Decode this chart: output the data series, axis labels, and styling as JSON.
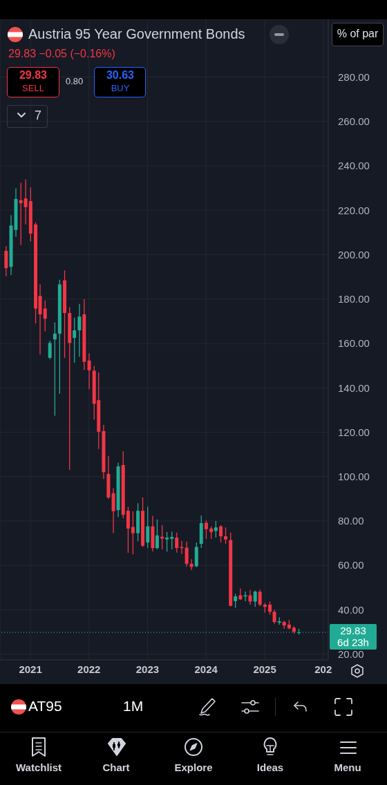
{
  "chart_data": {
    "type": "candlestick",
    "title": "Austria 95 Year Government Bonds",
    "subtitle": "29.83 −0.05 (−0.16%)",
    "x": [
      "2020-08",
      "2020-09",
      "2020-10",
      "2020-11",
      "2020-12",
      "2021-01",
      "2021-02",
      "2021-03",
      "2021-04",
      "2021-05",
      "2021-06",
      "2021-07",
      "2021-08",
      "2021-09",
      "2021-10",
      "2021-11",
      "2021-12",
      "2022-01",
      "2022-02",
      "2022-03",
      "2022-04",
      "2022-05",
      "2022-06",
      "2022-07",
      "2022-08",
      "2022-09",
      "2022-10",
      "2022-11",
      "2022-12",
      "2023-01",
      "2023-02",
      "2023-03",
      "2023-04",
      "2023-05",
      "2023-06",
      "2023-07",
      "2023-08",
      "2023-09",
      "2023-10",
      "2023-11",
      "2023-12",
      "2024-01",
      "2024-02",
      "2024-03",
      "2024-04",
      "2024-05",
      "2024-06",
      "2024-07",
      "2024-08",
      "2024-09",
      "2024-10",
      "2024-11",
      "2024-12",
      "2025-01",
      "2025-02",
      "2025-03",
      "2025-04",
      "2025-05",
      "2025-06",
      "2025-07",
      "2025-08"
    ],
    "ohlc": [
      [
        201.7,
        203.8,
        190.3,
        193.9
      ],
      [
        194.5,
        217.8,
        190.8,
        213.1
      ],
      [
        211.1,
        229.9,
        208,
        225.1
      ],
      [
        224.5,
        232.3,
        204.3,
        223.2
      ],
      [
        225.3,
        233.9,
        213.6,
        221.4
      ],
      [
        224.1,
        230.3,
        205.9,
        209.5
      ],
      [
        213.6,
        214.5,
        169,
        175.7
      ],
      [
        181.4,
        186.6,
        155,
        173.1
      ],
      [
        175.7,
        179.4,
        165.4,
        171.1
      ],
      [
        153.5,
        161.2,
        152.9,
        160.2
      ],
      [
        161.8,
        169.5,
        127.4,
        164.4
      ],
      [
        164.4,
        188.7,
        137.3,
        186.6
      ],
      [
        188.4,
        192.9,
        153.5,
        173.7
      ],
      [
        173.7,
        176.3,
        103,
        160.2
      ],
      [
        162.5,
        171.6,
        151.3,
        165.9
      ],
      [
        165.9,
        177.8,
        154,
        172.1
      ],
      [
        173.1,
        179.9,
        148,
        151.7
      ],
      [
        152.3,
        155.5,
        139.4,
        147.9
      ],
      [
        147.7,
        149.8,
        125.7,
        132.8
      ],
      [
        134.4,
        146.9,
        112.4,
        120.2
      ],
      [
        120.5,
        123.3,
        98.9,
        102
      ],
      [
        101.2,
        109.3,
        90,
        90.6
      ],
      [
        92.5,
        94.8,
        74.5,
        84.4
      ],
      [
        84.9,
        106.2,
        81.8,
        104.6
      ],
      [
        105.2,
        111.4,
        81.2,
        82.8
      ],
      [
        84.6,
        86.4,
        65.7,
        76.6
      ],
      [
        77.3,
        84.4,
        65,
        74.5
      ],
      [
        74.5,
        88,
        70.9,
        84.6
      ],
      [
        84.6,
        90.6,
        68.3,
        68.8
      ],
      [
        70.3,
        86.4,
        67.8,
        77.6
      ],
      [
        77.6,
        82.3,
        66.3,
        67.8
      ],
      [
        67.8,
        80.7,
        67.2,
        73.5
      ],
      [
        72.9,
        78.1,
        67.2,
        72.1
      ],
      [
        71.7,
        75,
        66.2,
        72.5
      ],
      [
        72,
        75.2,
        67.2,
        72.8
      ],
      [
        72.5,
        74.8,
        65.7,
        67.8
      ],
      [
        68.3,
        71.1,
        65.2,
        67.8
      ],
      [
        68,
        70.7,
        59.4,
        60.7
      ],
      [
        60.7,
        62.8,
        57.9,
        59.3
      ],
      [
        59.6,
        70.3,
        59.2,
        68.3
      ],
      [
        69.7,
        82.5,
        67.8,
        79
      ],
      [
        79.2,
        80.2,
        71.9,
        76.3
      ],
      [
        76.6,
        77.6,
        71.9,
        75
      ],
      [
        75.5,
        80,
        72.5,
        77.1
      ],
      [
        77.6,
        78.1,
        70.3,
        73.1
      ],
      [
        73.1,
        77.1,
        69.7,
        71.7
      ],
      [
        71.4,
        74.8,
        41.5,
        41.8
      ],
      [
        43.9,
        47.2,
        40.8,
        46
      ],
      [
        46.5,
        49.6,
        44.4,
        44.7
      ],
      [
        46,
        48.2,
        43.9,
        46.5
      ],
      [
        46.5,
        48.9,
        42.3,
        43.7
      ],
      [
        43.7,
        48.6,
        41.3,
        48.2
      ],
      [
        48.1,
        49.1,
        41.6,
        42.3
      ],
      [
        42.3,
        43,
        38.7,
        41.3
      ],
      [
        42.3,
        43.7,
        37.8,
        39.1
      ],
      [
        39.1,
        40,
        33.7,
        34.5
      ],
      [
        34.2,
        36.6,
        33.3,
        34.8
      ],
      [
        34.5,
        35,
        31.4,
        32.9
      ],
      [
        33.3,
        35.4,
        31.3,
        31.6
      ],
      [
        31.9,
        32.6,
        29.3,
        30.1
      ],
      [
        29.7,
        31.4,
        28.8,
        29.83
      ]
    ],
    "colors": [
      "#f23645",
      "#22ab94",
      "#22ab94",
      "#f23645",
      "#f23645",
      "#f23645",
      "#f23645",
      "#f23645",
      "#f23645",
      "#22ab94",
      "#22ab94",
      "#22ab94",
      "#f23645",
      "#f23645",
      "#22ab94",
      "#22ab94",
      "#f23645",
      "#f23645",
      "#f23645",
      "#f23645",
      "#f23645",
      "#f23645",
      "#f23645",
      "#22ab94",
      "#f23645",
      "#f23645",
      "#f23645",
      "#22ab94",
      "#f23645",
      "#22ab94",
      "#f23645",
      "#22ab94",
      "#f23645",
      "#22ab94",
      "#22ab94",
      "#f23645",
      "#f23645",
      "#f23645",
      "#f23645",
      "#22ab94",
      "#22ab94",
      "#f23645",
      "#f23645",
      "#22ab94",
      "#f23645",
      "#f23645",
      "#f23645",
      "#22ab94",
      "#f23645",
      "#22ab94",
      "#f23645",
      "#22ab94",
      "#f23645",
      "#f23645",
      "#f23645",
      "#f23645",
      "#22ab94",
      "#f23645",
      "#f23645",
      "#f23645",
      "#22ab94"
    ],
    "xlim": [
      "2020-06-25",
      "2026-02-01"
    ],
    "xticks": [
      "2021",
      "2022",
      "2023",
      "2024",
      "2025",
      {
        "value": "2026",
        "label": "202"
      }
    ],
    "ylim": [
      17.4,
      306
    ],
    "yticks": [
      {
        "value": 20,
        "label": "20.00"
      },
      {
        "value": 40,
        "label": "40.00"
      },
      {
        "value": 60,
        "label": "60.00"
      },
      {
        "value": 80,
        "label": "80.00"
      },
      {
        "value": 100,
        "label": "100.00"
      },
      {
        "value": 120,
        "label": "120.00"
      },
      {
        "value": 140,
        "label": "140.00"
      },
      {
        "value": 160,
        "label": "160.00"
      },
      {
        "value": 180,
        "label": "180.00"
      },
      {
        "value": 200,
        "label": "200.00"
      },
      {
        "value": 220,
        "label": "220.00"
      },
      {
        "value": 240,
        "label": "240.00"
      },
      {
        "value": 260,
        "label": "260.00"
      },
      {
        "value": 280,
        "label": "280.00"
      }
    ],
    "grid": true,
    "ref_lines": [
      {
        "axis": "y",
        "value": 29.83,
        "label": "29.83",
        "color": "#22ab94",
        "line_style": "dotted"
      }
    ],
    "annotations": [
      "29.83",
      "SELL",
      "0.80",
      "30.63",
      "BUY",
      "7",
      "% of par",
      "6d 23h",
      "AT95",
      "1M",
      "Watchlist",
      "Chart",
      "Explore",
      "Ideas",
      "Menu"
    ]
  }
}
